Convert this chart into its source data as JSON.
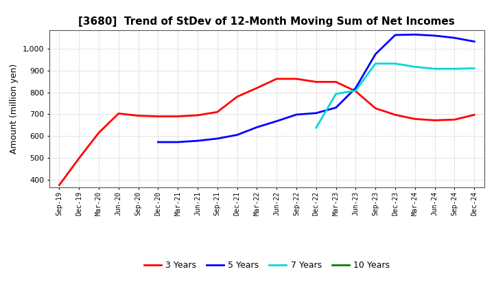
{
  "title": "[3680]  Trend of StDev of 12-Month Moving Sum of Net Incomes",
  "ylabel": "Amount (million yen)",
  "background_color": "#ffffff",
  "grid_color": "#aaaaaa",
  "x_labels": [
    "Sep-19",
    "Dec-19",
    "Mar-20",
    "Jun-20",
    "Sep-20",
    "Dec-20",
    "Mar-21",
    "Jun-21",
    "Sep-21",
    "Dec-21",
    "Mar-22",
    "Jun-22",
    "Sep-22",
    "Dec-22",
    "Mar-23",
    "Jun-23",
    "Sep-23",
    "Dec-23",
    "Mar-24",
    "Jun-24",
    "Sep-24",
    "Dec-24"
  ],
  "ylim": [
    365,
    1085
  ],
  "yticks": [
    400,
    500,
    600,
    700,
    800,
    900,
    1000
  ],
  "series": {
    "3 Years": {
      "color": "#ff0000",
      "data": {
        "Sep-19": 375,
        "Dec-19": 498,
        "Mar-20": 615,
        "Jun-20": 703,
        "Sep-20": 693,
        "Dec-20": 690,
        "Mar-21": 690,
        "Jun-21": 695,
        "Sep-21": 710,
        "Dec-21": 780,
        "Mar-22": 820,
        "Jun-22": 862,
        "Sep-22": 862,
        "Dec-22": 848,
        "Mar-23": 848,
        "Jun-23": 805,
        "Sep-23": 727,
        "Dec-23": 697,
        "Mar-24": 678,
        "Jun-24": 672,
        "Sep-24": 675,
        "Dec-24": 697
      }
    },
    "5 Years": {
      "color": "#0000ff",
      "data": {
        "Dec-20": 572,
        "Mar-21": 572,
        "Jun-21": 578,
        "Sep-21": 588,
        "Dec-21": 605,
        "Mar-22": 640,
        "Jun-22": 668,
        "Sep-22": 698,
        "Dec-22": 705,
        "Mar-23": 730,
        "Jun-23": 820,
        "Sep-23": 975,
        "Dec-23": 1063,
        "Mar-24": 1065,
        "Jun-24": 1060,
        "Sep-24": 1050,
        "Dec-24": 1033
      }
    },
    "7 Years": {
      "color": "#00d8d8",
      "data": {
        "Dec-22": 638,
        "Mar-23": 793,
        "Jun-23": 808,
        "Sep-23": 932,
        "Dec-23": 932,
        "Mar-24": 917,
        "Jun-24": 908,
        "Sep-24": 908,
        "Dec-24": 910
      }
    },
    "10 Years": {
      "color": "#008000",
      "data": {}
    }
  },
  "legend": {
    "items": [
      "3 Years",
      "5 Years",
      "7 Years",
      "10 Years"
    ],
    "colors": [
      "#ff0000",
      "#0000ff",
      "#00d8d8",
      "#008000"
    ]
  }
}
